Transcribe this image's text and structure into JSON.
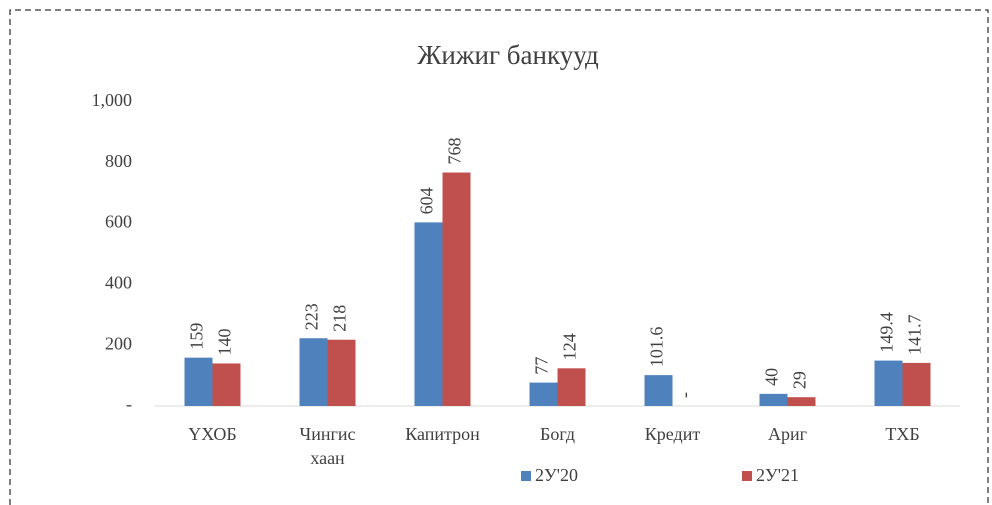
{
  "chart_data": {
    "type": "bar",
    "title": "Жижиг банкууд",
    "categories": [
      "ҮХОБ",
      "Чингис хаан",
      "Капитрон",
      "Богд",
      "Кредит",
      "Ариг",
      "ТХБ"
    ],
    "series": [
      {
        "name": "2У'20",
        "color": "#4f81bd",
        "values": [
          159,
          223,
          604,
          77,
          101.6,
          40,
          149.4
        ]
      },
      {
        "name": "2У'21",
        "color": "#c0504d",
        "values": [
          140,
          218,
          768,
          124,
          0,
          29,
          141.7
        ],
        "value_labels": [
          "140",
          "218",
          "768",
          "124",
          "-",
          "29",
          "141.7"
        ]
      }
    ],
    "ylim": [
      0,
      1000
    ],
    "yticks": [
      {
        "value": 0,
        "label": "-"
      },
      200,
      400,
      600,
      800,
      {
        "value": 1000,
        "label": "1,000"
      }
    ],
    "grid": false,
    "legend": "bottom"
  }
}
